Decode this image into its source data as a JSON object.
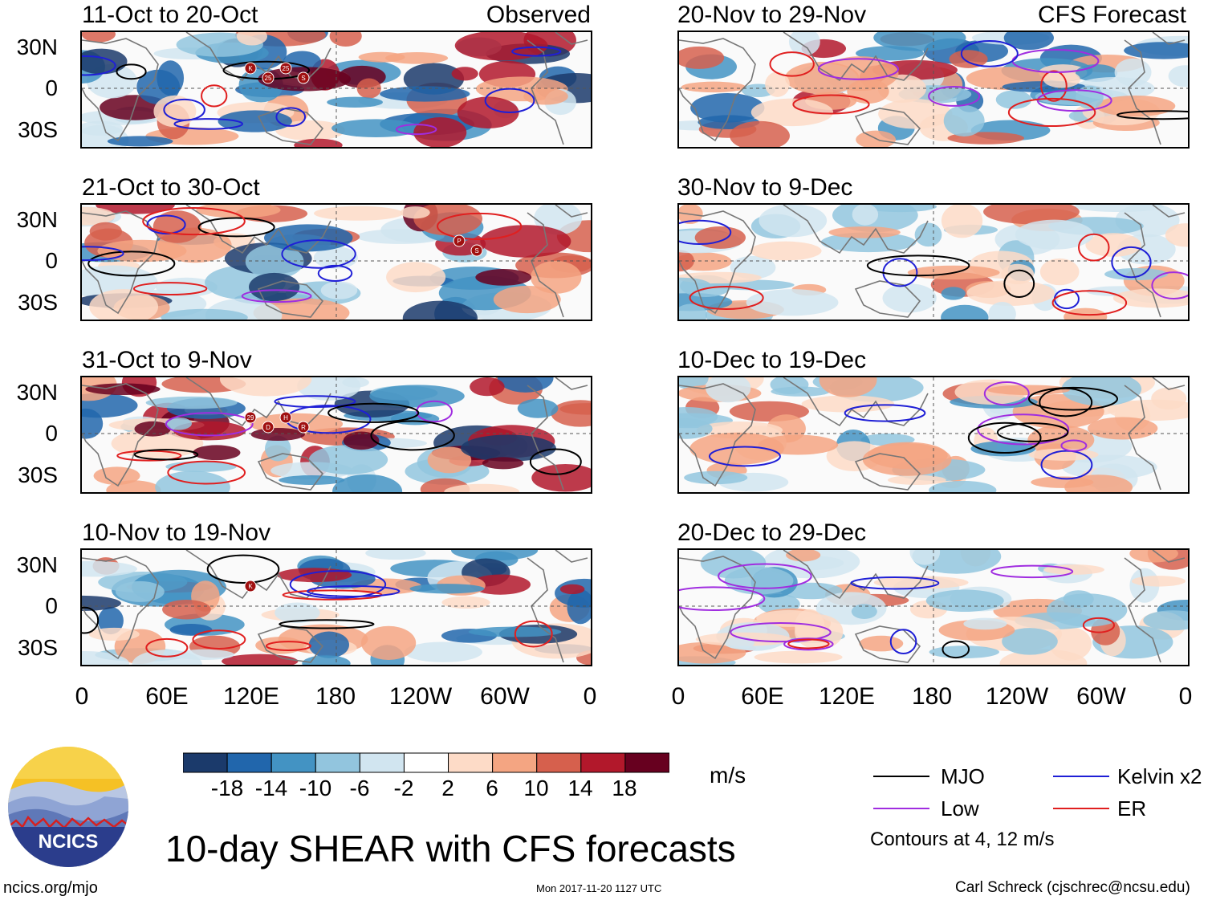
{
  "title": "10-day SHEAR with CFS forecasts",
  "observed_label": "Observed",
  "forecast_label": "CFS Forecast",
  "panels_left": [
    "11-Oct to 20-Oct",
    "21-Oct to 30-Oct",
    "31-Oct to 9-Nov",
    "10-Nov to 19-Nov"
  ],
  "panels_right": [
    "20-Nov to 29-Nov",
    "30-Nov to 9-Dec",
    "10-Dec to 19-Dec",
    "20-Dec to 29-Dec"
  ],
  "lat_labels": [
    "30N",
    "0",
    "30S"
  ],
  "lon_labels": [
    "0",
    "60E",
    "120E",
    "180",
    "120W",
    "60W",
    "0"
  ],
  "colorbar": {
    "ticks": [
      "-18",
      "-14",
      "-10",
      "-6",
      "-2",
      "2",
      "6",
      "10",
      "14",
      "18"
    ],
    "colors": [
      "#1b3a6b",
      "#2166ac",
      "#4393c3",
      "#92c5de",
      "#d1e5f0",
      "#ffffff",
      "#fddbc7",
      "#f4a582",
      "#d6604d",
      "#b2182b",
      "#67001f"
    ],
    "units": "m/s"
  },
  "legend": {
    "items": [
      {
        "label": "MJO",
        "color": "#000000"
      },
      {
        "label": "Kelvin x2",
        "color": "#1f1fd6"
      },
      {
        "label": "Low",
        "color": "#a02de0"
      },
      {
        "label": "ER",
        "color": "#e01f1f"
      }
    ],
    "note": "Contours at 4, 12 m/s"
  },
  "logo_text": "NCICS",
  "footer": {
    "url": "ncics.org/mjo",
    "timestamp": "Mon 2017-11-20 1127 UTC",
    "credit": "Carl Schreck (cjschrec@ncsu.edu)"
  },
  "storm_markers": [
    {
      "panel": 0,
      "labels": [
        "K",
        "25",
        "25",
        "S"
      ]
    },
    {
      "panel": 1,
      "labels": [
        "P",
        "S"
      ]
    },
    {
      "panel": 2,
      "labels": [
        "29",
        "D",
        "H",
        "R"
      ]
    },
    {
      "panel": 3,
      "labels": [
        "K"
      ]
    }
  ]
}
